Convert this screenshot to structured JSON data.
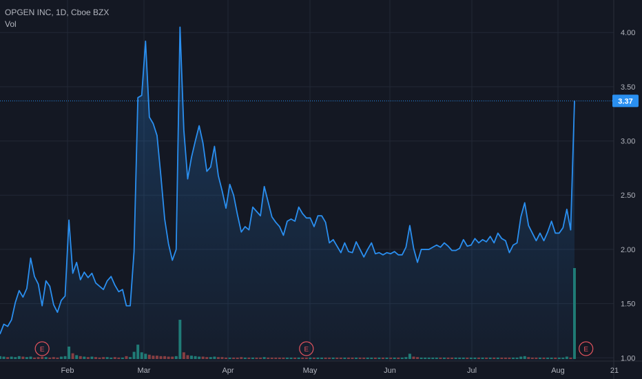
{
  "header": {
    "title": "OPGEN INC, 1D, Cboe BZX",
    "volume_label": "Vol"
  },
  "colors": {
    "background": "#141823",
    "line": "#2a8ff0",
    "grid": "#222836",
    "volume_up": "#1f7a70",
    "volume_down": "#8a3a3a",
    "earnings": "#e2535e"
  },
  "chart_data": {
    "type": "area",
    "title": "OPGEN INC, 1D, Cboe BZX",
    "y_ticks": [
      "1.00",
      "1.50",
      "2.00",
      "2.50",
      "3.00",
      "3.50",
      "4.00"
    ],
    "x_ticks": [
      "Feb",
      "Mar",
      "Apr",
      "May",
      "Jun",
      "Jul",
      "Aug",
      "21"
    ],
    "ylim": [
      0.97,
      4.3
    ],
    "last_price": "3.37",
    "earnings_marker": "E",
    "earnings_at": [
      11,
      80,
      153
    ],
    "series": [
      {
        "values": [
          1.22,
          1.31,
          1.29,
          1.35,
          1.51,
          1.62,
          1.56,
          1.64,
          1.92,
          1.75,
          1.68,
          1.48,
          1.71,
          1.66,
          1.49,
          1.42,
          1.53,
          1.57,
          2.27,
          1.78,
          1.88,
          1.72,
          1.79,
          1.74,
          1.78,
          1.69,
          1.66,
          1.63,
          1.71,
          1.75,
          1.67,
          1.61,
          1.63,
          1.48,
          1.48,
          1.98,
          3.4,
          3.42,
          3.92,
          3.22,
          3.16,
          3.05,
          2.68,
          2.28,
          2.05,
          1.9,
          2.0,
          4.05,
          3.1,
          2.65,
          2.85,
          3.0,
          3.14,
          2.98,
          2.72,
          2.76,
          2.95,
          2.68,
          2.54,
          2.38,
          2.6,
          2.5,
          2.32,
          2.16,
          2.21,
          2.18,
          2.39,
          2.35,
          2.31,
          2.58,
          2.44,
          2.3,
          2.25,
          2.21,
          2.13,
          2.26,
          2.28,
          2.26,
          2.39,
          2.33,
          2.29,
          2.29,
          2.21,
          2.31,
          2.31,
          2.25,
          2.06,
          2.09,
          2.03,
          1.97,
          2.06,
          1.98,
          1.97,
          2.07,
          2.0,
          1.93,
          2.0,
          2.06,
          1.96,
          1.97,
          1.95,
          1.97,
          1.96,
          1.98,
          1.95,
          1.95,
          2.02,
          2.22,
          2.01,
          1.88,
          2.0,
          2.0,
          2.0,
          2.02,
          2.04,
          2.02,
          2.06,
          2.03,
          1.99,
          1.99,
          2.01,
          2.09,
          2.03,
          2.04,
          2.1,
          2.06,
          2.09,
          2.07,
          2.12,
          2.06,
          2.15,
          2.1,
          2.08,
          1.97,
          2.04,
          2.06,
          2.3,
          2.43,
          2.22,
          2.15,
          2.08,
          2.15,
          2.08,
          2.16,
          2.26,
          2.15,
          2.15,
          2.2,
          2.37,
          2.18,
          3.37
        ]
      },
      {
        "name": "Vol",
        "values": [
          0.6,
          0.5,
          0.4,
          0.5,
          0.4,
          0.6,
          0.5,
          0.4,
          0.5,
          0.3,
          0.4,
          0.5,
          0.4,
          0.3,
          0.4,
          0.3,
          0.5,
          0.6,
          2.6,
          1.2,
          0.8,
          0.6,
          0.5,
          0.4,
          0.5,
          0.4,
          0.3,
          0.4,
          0.4,
          0.3,
          0.4,
          0.3,
          0.3,
          0.6,
          0.4,
          1.5,
          3.0,
          1.4,
          1.1,
          0.9,
          0.7,
          0.7,
          0.6,
          0.6,
          0.5,
          0.5,
          0.6,
          8.2,
          1.4,
          0.8,
          0.7,
          0.6,
          0.5,
          0.5,
          0.4,
          0.4,
          0.5,
          0.4,
          0.4,
          0.3,
          0.3,
          0.3,
          0.3,
          0.4,
          0.3,
          0.3,
          0.3,
          0.3,
          0.3,
          0.4,
          0.3,
          0.3,
          0.3,
          0.3,
          0.3,
          0.3,
          0.3,
          0.3,
          0.3,
          0.3,
          0.3,
          0.3,
          0.3,
          0.3,
          0.3,
          0.3,
          0.3,
          0.3,
          0.3,
          0.3,
          0.3,
          0.3,
          0.3,
          0.3,
          0.3,
          0.3,
          0.3,
          0.3,
          0.3,
          0.3,
          0.3,
          0.3,
          0.3,
          0.3,
          0.3,
          0.3,
          0.4,
          1.1,
          0.5,
          0.4,
          0.3,
          0.3,
          0.3,
          0.3,
          0.3,
          0.3,
          0.3,
          0.3,
          0.3,
          0.3,
          0.3,
          0.3,
          0.3,
          0.3,
          0.3,
          0.3,
          0.3,
          0.3,
          0.3,
          0.3,
          0.3,
          0.3,
          0.3,
          0.3,
          0.3,
          0.3,
          0.5,
          0.6,
          0.4,
          0.3,
          0.3,
          0.3,
          0.3,
          0.3,
          0.3,
          0.3,
          0.3,
          0.3,
          0.5,
          0.3,
          19.0
        ]
      }
    ]
  }
}
